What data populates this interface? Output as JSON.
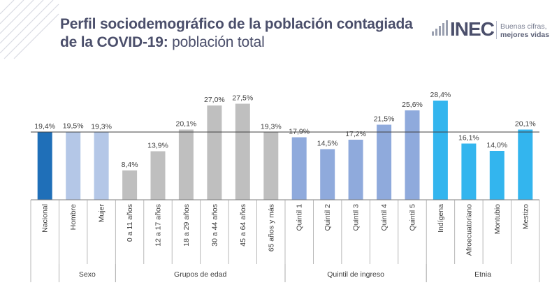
{
  "title": {
    "line1": "Perfil sociodemográfico de la población contagiada",
    "line2_bold": "de la COVID-19:",
    "line2_light": " población total"
  },
  "logo": {
    "text": "INEC",
    "slogan_line1": "Buenas cifras,",
    "slogan_line2": "mejores vidas"
  },
  "chart_data": {
    "type": "bar",
    "categories": [
      "Nacional",
      "Hombre",
      "Mujer",
      "0 a 11 años",
      "12 a 17 años",
      "18 a 29 años",
      "30 a 44 años",
      "45 a 64 años",
      "65 años y más",
      "Quintil 1",
      "Quintil 2",
      "Quintil 3",
      "Quintil 4",
      "Quintil 5",
      "Indígena",
      "Afroecuatoriano",
      "Montubio",
      "Mestizo"
    ],
    "values": [
      19.4,
      19.5,
      19.3,
      8.4,
      13.9,
      20.1,
      27.0,
      27.5,
      19.3,
      17.9,
      14.5,
      17.2,
      21.5,
      25.6,
      28.4,
      16.1,
      14.0,
      20.1
    ],
    "value_labels": [
      "19,4%",
      "19,5%",
      "19,3%",
      "8,4%",
      "13,9%",
      "20,1%",
      "27,0%",
      "27,5%",
      "19,3%",
      "17,9%",
      "14,5%",
      "17,2%",
      "21,5%",
      "25,6%",
      "28,4%",
      "16,1%",
      "14,0%",
      "20,1%"
    ],
    "bar_colors": [
      "#1f6fb8",
      "#b4c7e7",
      "#b4c7e7",
      "#bfbfbf",
      "#bfbfbf",
      "#bfbfbf",
      "#bfbfbf",
      "#bfbfbf",
      "#bfbfbf",
      "#8faadc",
      "#8faadc",
      "#8faadc",
      "#8faadc",
      "#8faadc",
      "#33b5ee",
      "#33b5ee",
      "#33b5ee",
      "#33b5ee"
    ],
    "reference_line": 19.4,
    "groups": [
      {
        "label": "",
        "start": 0,
        "end": 0
      },
      {
        "label": "Sexo",
        "start": 1,
        "end": 2
      },
      {
        "label": "Grupos de edad",
        "start": 3,
        "end": 8
      },
      {
        "label": "Quintil de ingreso",
        "start": 9,
        "end": 13
      },
      {
        "label": "Etnia",
        "start": 14,
        "end": 17
      }
    ],
    "ylim": [
      0,
      30
    ],
    "grid": false,
    "xlabel": "",
    "ylabel": ""
  }
}
